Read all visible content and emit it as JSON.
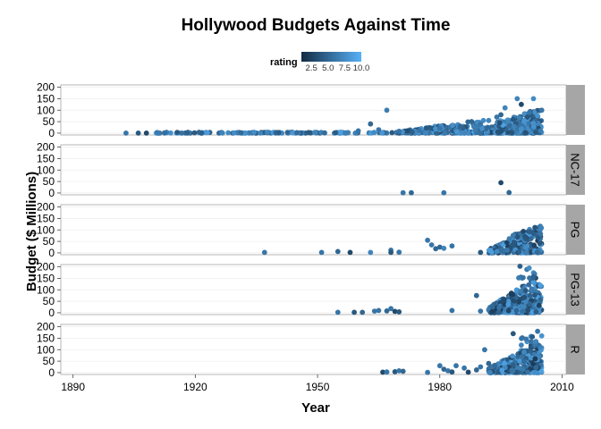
{
  "chart_data": {
    "type": "scatter",
    "title": "Hollywood Budgets Against Time",
    "xlabel": "Year",
    "ylabel": "Budget ($ Millions)",
    "xlim": [
      1887,
      2011
    ],
    "xticks": [
      1890,
      1920,
      1950,
      1980,
      2010
    ],
    "legend": {
      "title": "rating",
      "position": "top",
      "range": [
        1,
        10
      ],
      "ticks": [
        2.5,
        5.0,
        7.5,
        10.0
      ],
      "tick_labels": [
        "2.5",
        "5.0",
        "7.5",
        "10.0"
      ],
      "color_low": "#132B43",
      "color_high": "#56B1F7"
    },
    "panels": [
      {
        "label": "",
        "ylim": [
          -8,
          210
        ],
        "yticks": [
          0,
          50,
          100,
          150,
          200
        ],
        "points": [
          [
            1903,
            0.2,
            6
          ],
          [
            1906,
            0.2,
            4
          ],
          [
            1908,
            0.2,
            3
          ],
          [
            1967,
            100,
            6.5
          ],
          [
            1999,
            150,
            7
          ],
          [
            2003,
            150,
            7.5
          ],
          [
            2005,
            100,
            6
          ],
          [
            2000,
            125,
            3
          ],
          [
            1996,
            110,
            7
          ],
          [
            1994,
            70,
            6
          ],
          [
            1990,
            40,
            6
          ],
          [
            1985,
            30,
            5
          ],
          [
            1980,
            20,
            6
          ],
          [
            1975,
            12,
            6
          ],
          [
            1970,
            8,
            6
          ],
          [
            1965,
            15,
            6
          ],
          [
            1963,
            40,
            5
          ],
          [
            1960,
            10,
            6
          ],
          [
            1995,
            80,
            5
          ],
          [
            2002,
            90,
            6
          ],
          [
            2004,
            75,
            8
          ],
          [
            1998,
            60,
            4
          ],
          [
            1992,
            55,
            7
          ]
        ]
      },
      {
        "label": "NC-17",
        "ylim": [
          -8,
          210
        ],
        "yticks": [
          0,
          50,
          100,
          150,
          200
        ],
        "points": [
          [
            1971,
            1,
            6
          ],
          [
            1973,
            1,
            5
          ],
          [
            1981,
            1,
            6
          ],
          [
            1995,
            45,
            3
          ],
          [
            1997,
            2,
            5
          ]
        ]
      },
      {
        "label": "PG",
        "ylim": [
          -8,
          210
        ],
        "yticks": [
          0,
          50,
          100,
          150,
          200
        ],
        "points": [
          [
            1937,
            2,
            6
          ],
          [
            1951,
            2,
            6
          ],
          [
            1955,
            6,
            5
          ],
          [
            1958,
            2,
            3
          ],
          [
            1963,
            2,
            7
          ],
          [
            1968,
            12,
            6
          ],
          [
            1968,
            2,
            4
          ],
          [
            1970,
            3,
            6
          ],
          [
            1977,
            55,
            6
          ],
          [
            1978,
            35,
            6
          ],
          [
            1979,
            18,
            5
          ],
          [
            1980,
            25,
            5
          ],
          [
            1981,
            20,
            7
          ],
          [
            1983,
            30,
            6
          ],
          [
            1990,
            2,
            4
          ]
        ]
      },
      {
        "label": "PG-13",
        "ylim": [
          -8,
          210
        ],
        "yticks": [
          0,
          50,
          100,
          150,
          200
        ],
        "points": [
          [
            1955,
            2,
            6
          ],
          [
            1959,
            2,
            4
          ],
          [
            1961,
            2,
            5
          ],
          [
            1964,
            7,
            6
          ],
          [
            1965,
            10,
            6
          ],
          [
            1967,
            8,
            5
          ],
          [
            1968,
            18,
            6
          ],
          [
            1969,
            6,
            3
          ],
          [
            1970,
            4,
            4
          ],
          [
            1983,
            10,
            6
          ],
          [
            1989,
            75,
            5
          ],
          [
            1990,
            7,
            6
          ],
          [
            1993,
            25,
            5
          ]
        ]
      },
      {
        "label": "R",
        "ylim": [
          -8,
          210
        ],
        "yticks": [
          0,
          50,
          100,
          150,
          200
        ],
        "points": [
          [
            1966,
            2,
            3
          ],
          [
            1967,
            3,
            6
          ],
          [
            1969,
            4,
            4
          ],
          [
            1970,
            8,
            6
          ],
          [
            1971,
            6,
            5
          ],
          [
            1977,
            1,
            6
          ],
          [
            1980,
            30,
            6
          ],
          [
            1981,
            15,
            5
          ],
          [
            1982,
            8,
            6
          ],
          [
            1983,
            3,
            4
          ],
          [
            1984,
            30,
            6
          ],
          [
            1986,
            20,
            6
          ],
          [
            1987,
            2,
            3
          ],
          [
            1989,
            12,
            5
          ],
          [
            1990,
            25,
            6
          ],
          [
            1991,
            100,
            6
          ],
          [
            1992,
            40,
            5
          ],
          [
            1998,
            170,
            4
          ],
          [
            2000,
            120,
            7
          ],
          [
            2004,
            180,
            6
          ],
          [
            2005,
            160,
            8
          ]
        ]
      }
    ],
    "dense_clusters": [
      {
        "panel": 0,
        "x": [
          1910,
          2005
        ],
        "y": [
          0,
          4
        ],
        "rating": [
          4,
          9
        ],
        "count": 260,
        "growth": 0
      },
      {
        "panel": 0,
        "x": [
          1970,
          2005
        ],
        "y": [
          0,
          60
        ],
        "rating": [
          3,
          9
        ],
        "count": 230,
        "growth": 1.4
      },
      {
        "panel": 0,
        "x": [
          1990,
          2005
        ],
        "y": [
          0,
          120
        ],
        "rating": [
          3,
          9
        ],
        "count": 200,
        "growth": 0.8
      },
      {
        "panel": 2,
        "x": [
          1992,
          2005
        ],
        "y": [
          0,
          110
        ],
        "rating": [
          2,
          9
        ],
        "count": 200,
        "growth": 0.9
      },
      {
        "panel": 2,
        "x": [
          1997,
          2005
        ],
        "y": [
          60,
          145
        ],
        "rating": [
          3,
          8
        ],
        "count": 30,
        "growth": 0.6
      },
      {
        "panel": 3,
        "x": [
          1992,
          2005
        ],
        "y": [
          0,
          160
        ],
        "rating": [
          2,
          9
        ],
        "count": 360,
        "growth": 0.9
      },
      {
        "panel": 3,
        "x": [
          1999,
          2005
        ],
        "y": [
          150,
          205
        ],
        "rating": [
          4,
          8
        ],
        "count": 12,
        "growth": 0
      },
      {
        "panel": 4,
        "x": [
          1992,
          2005
        ],
        "y": [
          0,
          120
        ],
        "rating": [
          2,
          9
        ],
        "count": 320,
        "growth": 1.1
      },
      {
        "panel": 4,
        "x": [
          1999,
          2005
        ],
        "y": [
          120,
          160
        ],
        "rating": [
          4,
          8
        ],
        "count": 10,
        "growth": 0
      }
    ]
  }
}
